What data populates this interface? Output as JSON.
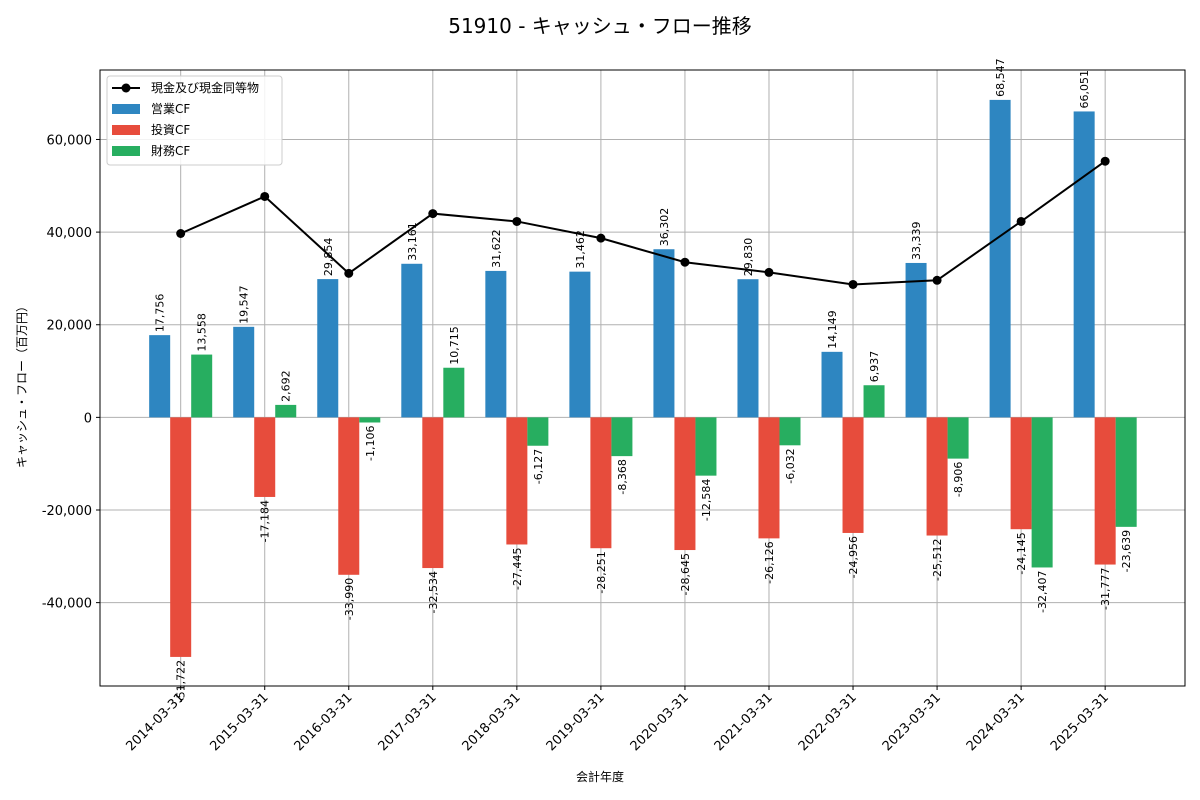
{
  "chart_data": {
    "type": "bar",
    "title": "51910 - キャッシュ・フロー推移",
    "xlabel": "会計年度",
    "ylabel": "キャッシュ・フロー（百万円）",
    "ylim": [
      -58000,
      75000
    ],
    "yticks": [
      -40000,
      -20000,
      0,
      20000,
      40000,
      60000
    ],
    "ytick_labels": [
      "-40,000",
      "-20,000",
      "0",
      "20,000",
      "40,000",
      "60,000"
    ],
    "grid": true,
    "legend_position": "top-left",
    "categories": [
      "2014-03-31",
      "2015-03-31",
      "2016-03-31",
      "2017-03-31",
      "2018-03-31",
      "2019-03-31",
      "2020-03-31",
      "2021-03-31",
      "2022-03-31",
      "2023-03-31",
      "2024-03-31",
      "2025-03-31"
    ],
    "series": [
      {
        "name": "営業CF",
        "type": "bar",
        "color": "#2e86c1",
        "values": [
          17756,
          19547,
          29854,
          33161,
          31622,
          31462,
          36302,
          29830,
          14149,
          33339,
          68547,
          66051
        ],
        "labels": [
          "17,756",
          "19,547",
          "29,854",
          "33,161",
          "31,622",
          "31,462",
          "36,302",
          "29,830",
          "14,149",
          "33,339",
          "68,547",
          "66,051"
        ]
      },
      {
        "name": "投資CF",
        "type": "bar",
        "color": "#e74c3c",
        "values": [
          -51722,
          -17184,
          -33990,
          -32534,
          -27445,
          -28251,
          -28645,
          -26126,
          -24956,
          -25512,
          -24145,
          -31777
        ],
        "labels": [
          "-51,722",
          "-17,184",
          "-33,990",
          "-32,534",
          "-27,445",
          "-28,251",
          "-28,645",
          "-26,126",
          "-24,956",
          "-25,512",
          "-24,145",
          "-31,777"
        ]
      },
      {
        "name": "財務CF",
        "type": "bar",
        "color": "#27ae60",
        "values": [
          13558,
          2692,
          -1106,
          10715,
          -6127,
          -8368,
          -12584,
          -6032,
          6937,
          -8906,
          -32407,
          -23639
        ],
        "labels": [
          "13,558",
          "2,692",
          "-1,106",
          "10,715",
          "-6,127",
          "-8,368",
          "-12,584",
          "-6,032",
          "6,937",
          "-8,906",
          "-32,407",
          "-23,639"
        ]
      },
      {
        "name": "現金及び現金同等物",
        "type": "line",
        "color": "#000000",
        "values": [
          39700,
          47700,
          31100,
          44000,
          42300,
          38700,
          33500,
          31300,
          28700,
          29600,
          42300,
          55300
        ]
      }
    ]
  }
}
